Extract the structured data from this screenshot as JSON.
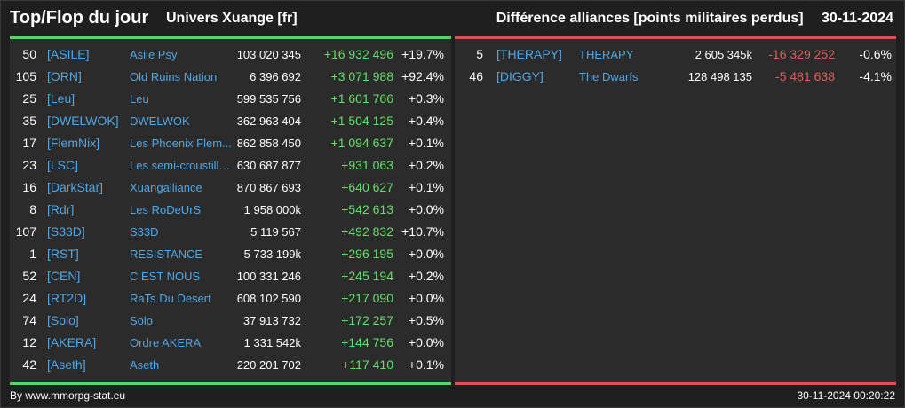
{
  "header": {
    "title": "Top/Flop du jour",
    "universe": "Univers Xuange [fr]",
    "subtitle": "Différence alliances [points militaires perdus]",
    "date": "30-11-2024"
  },
  "colors": {
    "positive": "#63e06a",
    "negative": "#e35c5c",
    "link": "#4fa7e6",
    "top_bar": "#58d65e",
    "flop_bar": "#d9534f"
  },
  "top": [
    {
      "rank": "50",
      "tag": "[ASILE]",
      "name": "Asile Psy",
      "points": "103 020 345",
      "diff": "+16 932 496",
      "pct": "+19.7%"
    },
    {
      "rank": "105",
      "tag": "[ORN]",
      "name": "Old Ruins Nation",
      "points": "6 396 692",
      "diff": "+3 071 988",
      "pct": "+92.4%"
    },
    {
      "rank": "25",
      "tag": "[Leu]",
      "name": "Leu",
      "points": "599 535 756",
      "diff": "+1 601 766",
      "pct": "+0.3%"
    },
    {
      "rank": "35",
      "tag": "[DWELWOK]",
      "name": "DWELWOK",
      "points": "362 963 404",
      "diff": "+1 504 125",
      "pct": "+0.4%"
    },
    {
      "rank": "17",
      "tag": "[FlemNix]",
      "name": "Les Phoenix Flem...",
      "points": "862 858 450",
      "diff": "+1 094 637",
      "pct": "+0.1%"
    },
    {
      "rank": "23",
      "tag": "[LSC]",
      "name": "Les semi-croustilla...",
      "points": "630 687 877",
      "diff": "+931 063",
      "pct": "+0.2%"
    },
    {
      "rank": "16",
      "tag": "[DarkStar]",
      "name": "Xuangalliance",
      "points": "870 867 693",
      "diff": "+640 627",
      "pct": "+0.1%"
    },
    {
      "rank": "8",
      "tag": "[Rdr]",
      "name": "Les RoDeUrS",
      "points": "1 958 000k",
      "diff": "+542 613",
      "pct": "+0.0%"
    },
    {
      "rank": "107",
      "tag": "[S33D]",
      "name": "S33D",
      "points": "5 119 567",
      "diff": "+492 832",
      "pct": "+10.7%"
    },
    {
      "rank": "1",
      "tag": "[RST]",
      "name": "RESISTANCE",
      "points": "5 733 199k",
      "diff": "+296 195",
      "pct": "+0.0%"
    },
    {
      "rank": "52",
      "tag": "[CEN]",
      "name": "C EST NOUS",
      "points": "100 331 246",
      "diff": "+245 194",
      "pct": "+0.2%"
    },
    {
      "rank": "24",
      "tag": "[RT2D]",
      "name": "RaTs Du Desert",
      "points": "608 102 590",
      "diff": "+217 090",
      "pct": "+0.0%"
    },
    {
      "rank": "74",
      "tag": "[Solo]",
      "name": "Solo",
      "points": "37 913 732",
      "diff": "+172 257",
      "pct": "+0.5%"
    },
    {
      "rank": "12",
      "tag": "[AKERA]",
      "name": "Ordre AKERA",
      "points": "1 331 542k",
      "diff": "+144 756",
      "pct": "+0.0%"
    },
    {
      "rank": "42",
      "tag": "[Aseth]",
      "name": "Aseth",
      "points": "220 201 702",
      "diff": "+117 410",
      "pct": "+0.1%"
    }
  ],
  "flop": [
    {
      "rank": "5",
      "tag": "[THERAPY]",
      "name": "THERAPY",
      "points": "2 605 345k",
      "diff": "-16 329 252",
      "pct": "-0.6%"
    },
    {
      "rank": "46",
      "tag": "[DIGGY]",
      "name": "The Dwarfs",
      "points": "128 498 135",
      "diff": "-5 481 638",
      "pct": "-4.1%"
    }
  ],
  "footer": {
    "credit": "By www.mmorpg-stat.eu",
    "timestamp": "30-11-2024 00:20:22"
  }
}
